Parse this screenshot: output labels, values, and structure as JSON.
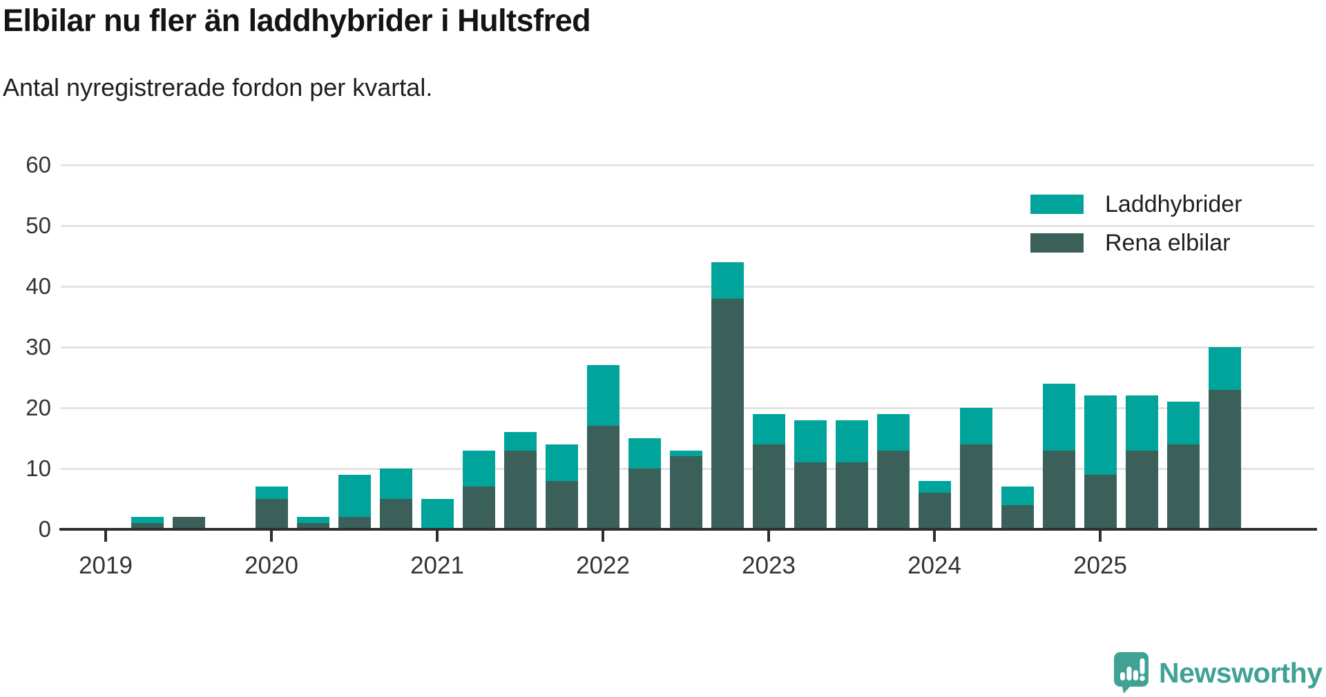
{
  "header": {
    "title": "Elbilar nu fler än laddhybrider i Hultsfred",
    "subtitle": "Antal nyregistrerade fordon per kvartal."
  },
  "branding": {
    "logo_text": "Newsworthy",
    "logo_color": "#3fa294",
    "logo_icon": "speech-bubble-bar-chart-exclamation"
  },
  "chart_data": {
    "type": "bar",
    "stacked": true,
    "title": "Elbilar nu fler än laddhybrider i Hultsfred",
    "subtitle": "Antal nyregistrerade fordon per kvartal.",
    "x_categories": [
      "2019 Q1",
      "2019 Q2",
      "2019 Q3",
      "2019 Q4",
      "2020 Q1",
      "2020 Q2",
      "2020 Q3",
      "2020 Q4",
      "2021 Q1",
      "2021 Q2",
      "2021 Q3",
      "2021 Q4",
      "2022 Q1",
      "2022 Q2",
      "2022 Q3",
      "2022 Q4",
      "2023 Q1",
      "2023 Q2",
      "2023 Q3",
      "2023 Q4",
      "2024 Q1",
      "2024 Q2",
      "2024 Q3",
      "2024 Q4",
      "2025 Q1",
      "2025 Q2",
      "2025 Q3",
      "2025 Q4"
    ],
    "x_year_labels": [
      "2019",
      "2020",
      "2021",
      "2022",
      "2023",
      "2024",
      "2025"
    ],
    "series": [
      {
        "name": "Rena elbilar",
        "color": "#3b5f59",
        "stack_order": "bottom",
        "values": [
          0,
          1,
          2,
          0,
          5,
          1,
          2,
          5,
          0,
          7,
          13,
          8,
          17,
          10,
          12,
          38,
          14,
          11,
          11,
          13,
          6,
          14,
          4,
          13,
          9,
          13,
          14,
          23
        ]
      },
      {
        "name": "Laddhybrider",
        "color": "#00a49b",
        "stack_order": "top",
        "values": [
          0,
          1,
          0,
          0,
          2,
          1,
          7,
          5,
          5,
          6,
          3,
          6,
          10,
          5,
          1,
          6,
          5,
          7,
          7,
          6,
          2,
          6,
          3,
          11,
          13,
          9,
          7,
          7
        ]
      }
    ],
    "totals": [
      0,
      2,
      2,
      0,
      7,
      2,
      9,
      10,
      5,
      13,
      16,
      14,
      27,
      15,
      13,
      44,
      19,
      18,
      18,
      19,
      8,
      20,
      7,
      24,
      22,
      22,
      21,
      30
    ],
    "ylim": [
      0,
      60
    ],
    "y_ticks": [
      0,
      10,
      20,
      30,
      40,
      50,
      60
    ],
    "grid": "horizontal",
    "legend_position": "top-right",
    "legend": [
      "Laddhybrider",
      "Rena elbilar"
    ]
  }
}
